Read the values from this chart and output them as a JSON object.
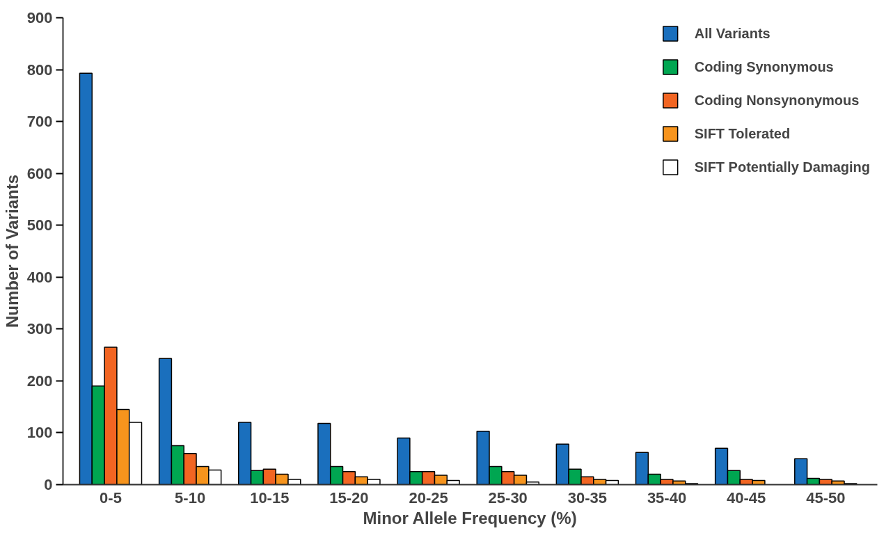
{
  "chart_data": {
    "type": "bar",
    "xlabel": "Minor Allele Frequency (%)",
    "ylabel": "Number of Variants",
    "categories": [
      "0-5",
      "5-10",
      "10-15",
      "15-20",
      "20-25",
      "25-30",
      "30-35",
      "35-40",
      "40-45",
      "45-50"
    ],
    "series": [
      {
        "name": "All Variants",
        "color": "#1a6fbd",
        "values": [
          793,
          243,
          120,
          118,
          90,
          103,
          78,
          62,
          70,
          50
        ]
      },
      {
        "name": "Coding Synonymous",
        "color": "#00a651",
        "values": [
          190,
          75,
          27,
          35,
          25,
          35,
          30,
          20,
          27,
          12
        ]
      },
      {
        "name": "Coding Nonsynonymous",
        "color": "#f26522",
        "values": [
          265,
          60,
          30,
          25,
          25,
          25,
          15,
          10,
          10,
          10
        ]
      },
      {
        "name": "SIFT Tolerated",
        "color": "#f7941d",
        "values": [
          145,
          35,
          20,
          15,
          18,
          18,
          10,
          7,
          8,
          7
        ]
      },
      {
        "name": "SIFT Potentially Damaging",
        "color": "#ffffff",
        "values": [
          120,
          28,
          10,
          10,
          8,
          5,
          8,
          2,
          null,
          2
        ]
      }
    ],
    "ylim": [
      0,
      900
    ],
    "yticks": [
      0,
      100,
      200,
      300,
      400,
      500,
      600,
      700,
      800,
      900
    ],
    "grid": false,
    "legend": "top right"
  }
}
